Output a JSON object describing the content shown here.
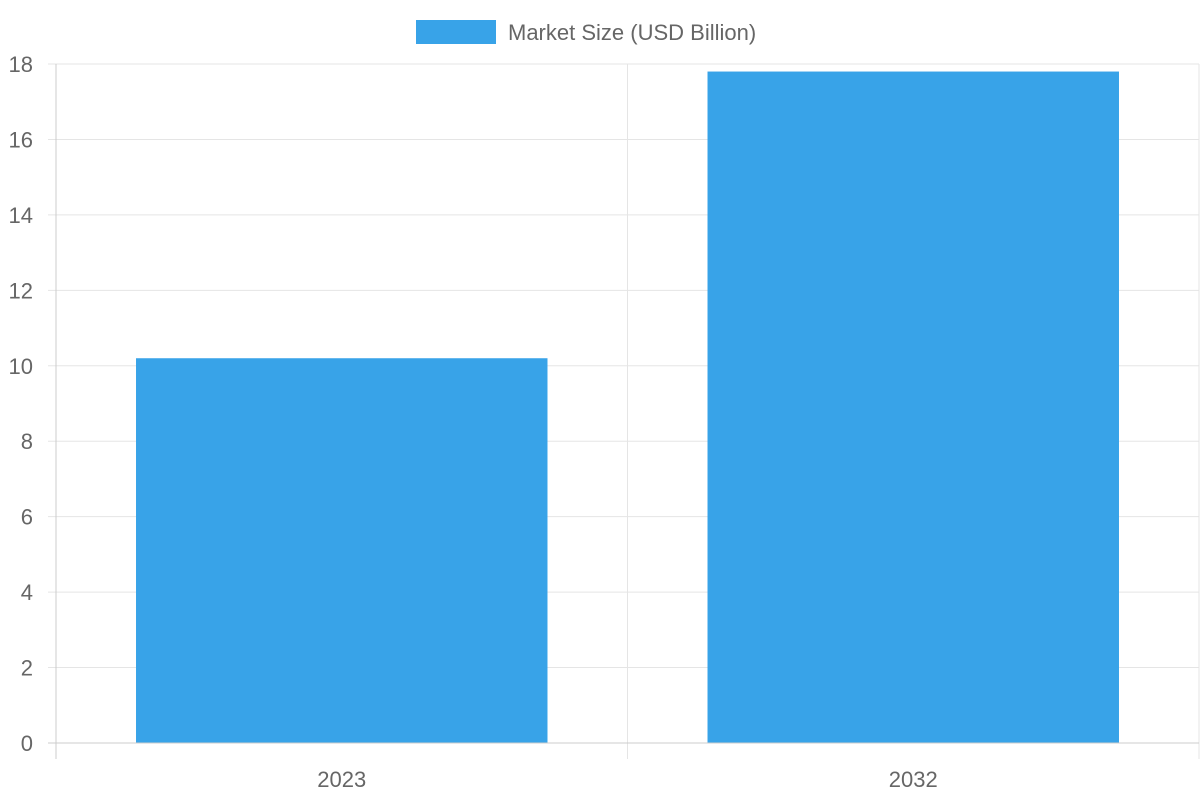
{
  "chart_data": {
    "type": "bar",
    "categories": [
      "2023",
      "2032"
    ],
    "series": [
      {
        "name": "Market Size (USD Billion)",
        "values": [
          10.2,
          17.8
        ],
        "color": "#38a3e8"
      }
    ],
    "ylim": [
      0,
      18
    ],
    "yticks": [
      "0",
      "2",
      "4",
      "6",
      "8",
      "10",
      "12",
      "14",
      "16",
      "18"
    ],
    "grid": true,
    "legend_position": "top-center",
    "xlabel": "",
    "ylabel": "",
    "title": ""
  },
  "colors": {
    "grid": "#e5e5e5",
    "axis": "#cccccc",
    "text": "#666666",
    "bar": "#38a3e8"
  }
}
